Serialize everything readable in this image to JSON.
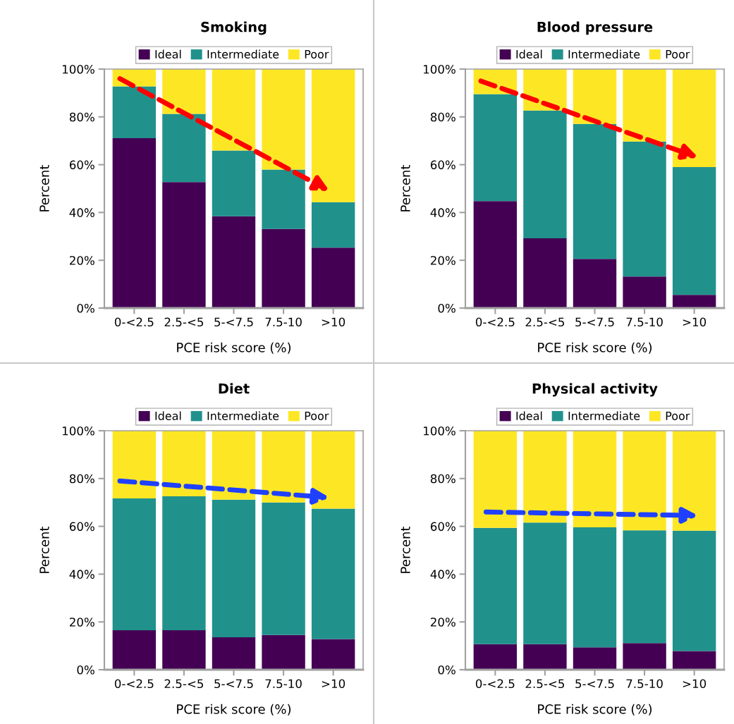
{
  "chart_data": [
    {
      "type": "bar",
      "stacked": true,
      "title": "Smoking",
      "xlabel": "PCE risk score (%)",
      "ylabel": "Percent",
      "legend": "top",
      "categories": [
        "0-<2.5",
        "2.5-<5",
        "5-<7.5",
        "7.5-10",
        ">10"
      ],
      "ylim": [
        0,
        100
      ],
      "yticks": [
        {
          "value": 0,
          "label": "0%"
        },
        {
          "value": 20,
          "label": "20%"
        },
        {
          "value": 40,
          "label": "40%"
        },
        {
          "value": 60,
          "label": "60%"
        },
        {
          "value": 80,
          "label": "80%"
        },
        {
          "value": 100,
          "label": "100%"
        }
      ],
      "series": [
        {
          "name": "Ideal",
          "color": "#440154",
          "values": [
            71.1,
            52.7,
            38.4,
            33.1,
            25.3
          ]
        },
        {
          "name": "Intermediate",
          "color": "#21918c",
          "values": [
            21.7,
            28.6,
            27.5,
            24.9,
            19.0
          ]
        },
        {
          "name": "Poor",
          "color": "#fde725",
          "values": [
            7.2,
            18.7,
            34.1,
            42.0,
            55.7
          ]
        }
      ]
    },
    {
      "type": "bar",
      "stacked": true,
      "title": "Blood pressure",
      "xlabel": "PCE risk score (%)",
      "ylabel": "Percent",
      "legend": "top",
      "categories": [
        "0-<2.5",
        "2.5-<5",
        "5-<7.5",
        "7.5-10",
        ">10"
      ],
      "ylim": [
        0,
        100
      ],
      "yticks": [
        {
          "value": 0,
          "label": "0%"
        },
        {
          "value": 20,
          "label": "20%"
        },
        {
          "value": 40,
          "label": "40%"
        },
        {
          "value": 60,
          "label": "60%"
        },
        {
          "value": 80,
          "label": "80%"
        },
        {
          "value": 100,
          "label": "100%"
        }
      ],
      "series": [
        {
          "name": "Ideal",
          "color": "#440154",
          "values": [
            44.8,
            29.2,
            20.6,
            13.2,
            5.5
          ]
        },
        {
          "name": "Intermediate",
          "color": "#21918c",
          "values": [
            44.7,
            53.5,
            56.5,
            56.5,
            53.5
          ]
        },
        {
          "name": "Poor",
          "color": "#fde725",
          "values": [
            10.5,
            17.3,
            22.9,
            30.3,
            41.0
          ]
        }
      ]
    },
    {
      "type": "bar",
      "stacked": true,
      "title": "Diet",
      "xlabel": "PCE risk score (%)",
      "ylabel": "Percent",
      "legend": "top",
      "categories": [
        "0-<2.5",
        "2.5-<5",
        "5-<7.5",
        "7.5-10",
        ">10"
      ],
      "ylim": [
        0,
        100
      ],
      "yticks": [
        {
          "value": 0,
          "label": "0%"
        },
        {
          "value": 20,
          "label": "20%"
        },
        {
          "value": 40,
          "label": "40%"
        },
        {
          "value": 60,
          "label": "60%"
        },
        {
          "value": 80,
          "label": "80%"
        },
        {
          "value": 100,
          "label": "100%"
        }
      ],
      "series": [
        {
          "name": "Ideal",
          "color": "#440154",
          "values": [
            16.5,
            16.5,
            13.6,
            14.5,
            12.8
          ]
        },
        {
          "name": "Intermediate",
          "color": "#21918c",
          "values": [
            55.2,
            56.1,
            57.6,
            55.5,
            54.6
          ]
        },
        {
          "name": "Poor",
          "color": "#fde725",
          "values": [
            28.3,
            27.4,
            28.8,
            30.0,
            32.6
          ]
        }
      ]
    },
    {
      "type": "bar",
      "stacked": true,
      "title": "Physical activity",
      "xlabel": "PCE risk score (%)",
      "ylabel": "Percent",
      "legend": "top",
      "categories": [
        "0-<2.5",
        "2.5-<5",
        "5-<7.5",
        "7.5-10",
        ">10"
      ],
      "ylim": [
        0,
        100
      ],
      "yticks": [
        {
          "value": 0,
          "label": "0%"
        },
        {
          "value": 20,
          "label": "20%"
        },
        {
          "value": 40,
          "label": "40%"
        },
        {
          "value": 60,
          "label": "60%"
        },
        {
          "value": 80,
          "label": "80%"
        },
        {
          "value": 100,
          "label": "100%"
        }
      ],
      "series": [
        {
          "name": "Ideal",
          "color": "#440154",
          "values": [
            10.7,
            10.7,
            9.4,
            11.1,
            7.8
          ]
        },
        {
          "name": "Intermediate",
          "color": "#21918c",
          "values": [
            48.7,
            50.9,
            50.2,
            47.2,
            50.4
          ]
        },
        {
          "name": "Poor",
          "color": "#fde725",
          "values": [
            40.6,
            38.4,
            40.4,
            41.7,
            41.8
          ]
        }
      ]
    }
  ]
}
